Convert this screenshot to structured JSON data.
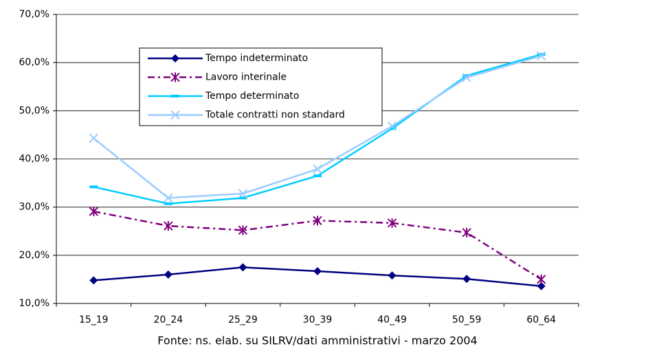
{
  "chart_data": {
    "type": "line",
    "categories": [
      "15_19",
      "20_24",
      "25_29",
      "30_39",
      "40_49",
      "50_59",
      "60_64"
    ],
    "series": [
      {
        "name": "Tempo indeterminato",
        "color": "#000080",
        "marker": "diamond",
        "dash": "solid",
        "values": [
          14.8,
          16.0,
          17.5,
          16.7,
          15.8,
          15.1,
          13.6
        ]
      },
      {
        "name": "Lavoro interinale",
        "color": "#800080",
        "marker": "asterisk",
        "dash": "dashdot",
        "values": [
          29.1,
          26.1,
          25.2,
          27.2,
          26.7,
          24.7,
          15.0
        ]
      },
      {
        "name": "Tempo determinato",
        "color": "#00ccff",
        "marker": "dash",
        "dash": "solid",
        "values": [
          34.2,
          30.7,
          31.9,
          36.5,
          46.3,
          57.3,
          61.7
        ]
      },
      {
        "name": "Totale contratti non standard",
        "color": "#99ccff",
        "marker": "x",
        "dash": "solid",
        "values": [
          44.3,
          31.9,
          32.8,
          37.9,
          46.8,
          56.9,
          61.4
        ]
      }
    ],
    "ylim": [
      10,
      70
    ],
    "yticks": [
      {
        "value": 10,
        "label": "10,0%"
      },
      {
        "value": 20,
        "label": "20,0%"
      },
      {
        "value": 30,
        "label": "30,0%"
      },
      {
        "value": 40,
        "label": "40,0%"
      },
      {
        "value": 50,
        "label": "50,0%"
      },
      {
        "value": 60,
        "label": "60,0%"
      },
      {
        "value": 70,
        "label": "70,0%"
      }
    ],
    "grid": true,
    "legend": "upper left",
    "source": "Fonte: ns. elab. su SILRV/dati amministrativi - marzo 2004"
  }
}
